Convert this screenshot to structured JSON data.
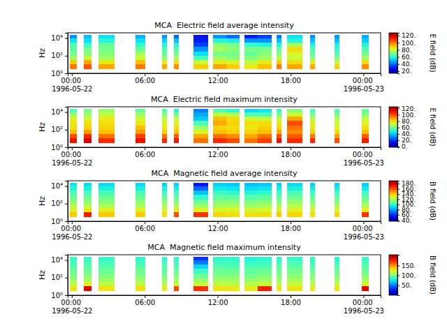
{
  "chart_data": [
    {
      "type": "heatmap",
      "title": "MCA  Electric field average intensity",
      "y_label": "Hz",
      "colorbar_label": "E field (dB)",
      "log": "y",
      "xlim": [
        "1996-05-21T23:40",
        "1996-05-23T01:25"
      ],
      "xticks": [
        {
          "value": "1996-05-22T00:00",
          "label": "00:00\n1996-05-22"
        },
        {
          "value": "1996-05-22T06:00",
          "label": "06:00"
        },
        {
          "value": "1996-05-22T12:00",
          "label": "12:00"
        },
        {
          "value": "1996-05-22T18:00",
          "label": "18:00"
        },
        {
          "value": "1996-05-23T00:00",
          "label": "00:00\n1996-05-23"
        }
      ],
      "ylim": [
        1,
        40000
      ],
      "yticks": [
        {
          "value": 1,
          "label": "10⁰"
        },
        {
          "value": 100,
          "label": "10²"
        },
        {
          "value": 10000,
          "label": "10⁴"
        }
      ],
      "x": [
        "1996-05-21T23:50",
        "1996-05-22T01:00",
        "1996-05-22T02:12",
        "1996-05-22T05:15",
        "1996-05-22T07:27",
        "1996-05-22T08:24",
        "1996-05-22T10:00",
        "1996-05-22T11:39",
        "1996-05-22T12:42",
        "1996-05-22T14:12",
        "1996-05-22T15:18",
        "1996-05-22T16:51",
        "1996-05-22T17:42",
        "1996-05-22T19:36",
        "1996-05-22T21:39",
        "1996-05-22T23:51"
      ],
      "x_end": [
        "1996-05-22T00:24",
        "1996-05-22T01:36",
        "1996-05-22T03:30",
        "1996-05-22T06:03",
        "1996-05-22T07:48",
        "1996-05-22T08:48",
        "1996-05-22T11:12",
        "1996-05-22T12:42",
        "1996-05-22T13:48",
        "1996-05-22T15:18",
        "1996-05-22T16:27",
        "1996-05-22T17:15",
        "1996-05-22T19:00",
        "1996-05-22T20:00",
        "1996-05-22T22:03",
        "1996-05-23T00:27"
      ],
      "y": [
        3,
        10,
        30,
        100,
        300,
        1000,
        3000,
        10000,
        25000
      ],
      "cells": [
        [
          100,
          90,
          75,
          70,
          68,
          65,
          55,
          45
        ],
        [
          105,
          95,
          80,
          72,
          70,
          62,
          55,
          50
        ],
        [
          95,
          85,
          75,
          72,
          70,
          68,
          60,
          55
        ],
        [
          100,
          92,
          80,
          75,
          68,
          62,
          55,
          48
        ],
        [
          95,
          85,
          72,
          68,
          65,
          60,
          52,
          45
        ],
        [
          98,
          88,
          75,
          70,
          66,
          60,
          50,
          40
        ],
        [
          90,
          80,
          65,
          55,
          45,
          35,
          30,
          28
        ],
        [
          95,
          85,
          75,
          70,
          75,
          72,
          60,
          45
        ],
        [
          90,
          82,
          72,
          70,
          72,
          70,
          58,
          40
        ],
        [
          85,
          78,
          72,
          68,
          70,
          62,
          45,
          30
        ],
        [
          92,
          85,
          75,
          72,
          70,
          60,
          45,
          35
        ],
        [
          100,
          90,
          78,
          72,
          68,
          60,
          50,
          42
        ],
        [
          95,
          88,
          80,
          82,
          88,
          75,
          60,
          55
        ],
        [
          95,
          85,
          72,
          68,
          65,
          58,
          50,
          45
        ],
        [
          90,
          80,
          70,
          66,
          62,
          58,
          50,
          45
        ],
        [
          98,
          88,
          75,
          70,
          66,
          60,
          52,
          48
        ]
      ],
      "colorbar_range": [
        14,
        128
      ],
      "colorbar_ticks": [
        {
          "value": 20,
          "label": "20."
        },
        {
          "value": 40,
          "label": "40."
        },
        {
          "value": 60,
          "label": "60."
        },
        {
          "value": 80,
          "label": "80."
        },
        {
          "value": 100,
          "label": "100."
        },
        {
          "value": 120,
          "label": "120."
        }
      ]
    },
    {
      "type": "heatmap",
      "title": "MCA  Electric field maximum intensity",
      "y_label": "Hz",
      "colorbar_label": "E field (dB)",
      "log": "y",
      "xlim": [
        "1996-05-21T23:40",
        "1996-05-23T01:25"
      ],
      "xticks": [
        {
          "value": "1996-05-22T00:00",
          "label": "00:00\n1996-05-22"
        },
        {
          "value": "1996-05-22T06:00",
          "label": "06:00"
        },
        {
          "value": "1996-05-22T12:00",
          "label": "12:00"
        },
        {
          "value": "1996-05-22T18:00",
          "label": "18:00"
        },
        {
          "value": "1996-05-23T00:00",
          "label": "00:00\n1996-05-23"
        }
      ],
      "ylim": [
        1,
        40000
      ],
      "yticks": [
        {
          "value": 1,
          "label": "10⁰"
        },
        {
          "value": 100,
          "label": "10²"
        },
        {
          "value": 10000,
          "label": "10⁴"
        }
      ],
      "x": [
        "1996-05-21T23:50",
        "1996-05-22T01:00",
        "1996-05-22T02:12",
        "1996-05-22T05:15",
        "1996-05-22T07:27",
        "1996-05-22T08:24",
        "1996-05-22T10:00",
        "1996-05-22T11:39",
        "1996-05-22T12:42",
        "1996-05-22T14:12",
        "1996-05-22T15:18",
        "1996-05-22T16:51",
        "1996-05-22T17:42",
        "1996-05-22T19:36",
        "1996-05-22T21:39",
        "1996-05-22T23:51"
      ],
      "x_end": [
        "1996-05-22T00:24",
        "1996-05-22T01:36",
        "1996-05-22T03:30",
        "1996-05-22T06:03",
        "1996-05-22T07:48",
        "1996-05-22T08:48",
        "1996-05-22T11:12",
        "1996-05-22T12:42",
        "1996-05-22T13:48",
        "1996-05-22T15:18",
        "1996-05-22T16:27",
        "1996-05-22T17:15",
        "1996-05-22T19:00",
        "1996-05-22T20:00",
        "1996-05-22T22:03",
        "1996-05-23T00:27"
      ],
      "y": [
        3,
        10,
        30,
        100,
        300,
        1000,
        3000,
        10000,
        25000
      ],
      "cells": [
        [
          110,
          100,
          85,
          80,
          78,
          75,
          65,
          55
        ],
        [
          115,
          105,
          90,
          82,
          80,
          72,
          65,
          60
        ],
        [
          105,
          95,
          85,
          82,
          80,
          78,
          70,
          65
        ],
        [
          110,
          102,
          90,
          85,
          78,
          72,
          65,
          58
        ],
        [
          105,
          95,
          82,
          78,
          75,
          70,
          62,
          55
        ],
        [
          108,
          98,
          85,
          80,
          76,
          70,
          60,
          50
        ],
        [
          95,
          88,
          75,
          65,
          55,
          40,
          35,
          30
        ],
        [
          105,
          95,
          85,
          82,
          88,
          85,
          70,
          55
        ],
        [
          100,
          92,
          82,
          80,
          82,
          80,
          68,
          50
        ],
        [
          95,
          88,
          82,
          78,
          80,
          72,
          55,
          42
        ],
        [
          102,
          95,
          85,
          82,
          80,
          70,
          55,
          45
        ],
        [
          110,
          100,
          88,
          82,
          78,
          70,
          60,
          52
        ],
        [
          105,
          98,
          92,
          95,
          100,
          88,
          72,
          62
        ],
        [
          105,
          95,
          82,
          78,
          75,
          68,
          60,
          55
        ],
        [
          100,
          90,
          80,
          76,
          72,
          68,
          60,
          55
        ],
        [
          108,
          98,
          85,
          80,
          76,
          70,
          62,
          58
        ]
      ],
      "colorbar_range": [
        -2,
        125
      ],
      "colorbar_ticks": [
        {
          "value": 0,
          "label": "0."
        },
        {
          "value": 20,
          "label": "20."
        },
        {
          "value": 40,
          "label": "40."
        },
        {
          "value": 60,
          "label": "60."
        },
        {
          "value": 80,
          "label": "80."
        },
        {
          "value": 100,
          "label": "100."
        },
        {
          "value": 120,
          "label": "120."
        }
      ]
    },
    {
      "type": "heatmap",
      "title": "MCA  Magnetic field average intensity",
      "y_label": "Hz",
      "colorbar_label": "B field (dB)",
      "log": "y",
      "xlim": [
        "1996-05-21T23:40",
        "1996-05-23T01:25"
      ],
      "xticks": [
        {
          "value": "1996-05-22T00:00",
          "label": "00:00\n1996-05-22"
        },
        {
          "value": "1996-05-22T06:00",
          "label": "06:00"
        },
        {
          "value": "1996-05-22T12:00",
          "label": "12:00"
        },
        {
          "value": "1996-05-22T18:00",
          "label": "18:00"
        },
        {
          "value": "1996-05-23T00:00",
          "label": "00:00\n1996-05-23"
        }
      ],
      "ylim": [
        1,
        40000
      ],
      "yticks": [
        {
          "value": 1,
          "label": "10⁰"
        },
        {
          "value": 100,
          "label": "10²"
        },
        {
          "value": 10000,
          "label": "10⁴"
        }
      ],
      "x": [
        "1996-05-21T23:50",
        "1996-05-22T01:00",
        "1996-05-22T02:12",
        "1996-05-22T05:15",
        "1996-05-22T07:27",
        "1996-05-22T08:24",
        "1996-05-22T10:00",
        "1996-05-22T11:39",
        "1996-05-22T12:42",
        "1996-05-22T14:12",
        "1996-05-22T15:18",
        "1996-05-22T16:51",
        "1996-05-22T17:42",
        "1996-05-22T19:36",
        "1996-05-22T21:39",
        "1996-05-22T23:51"
      ],
      "x_end": [
        "1996-05-22T00:24",
        "1996-05-22T01:36",
        "1996-05-22T03:30",
        "1996-05-22T06:03",
        "1996-05-22T07:48",
        "1996-05-22T08:48",
        "1996-05-22T11:12",
        "1996-05-22T12:42",
        "1996-05-22T13:48",
        "1996-05-22T15:18",
        "1996-05-22T16:27",
        "1996-05-22T17:15",
        "1996-05-22T19:00",
        "1996-05-22T20:00",
        "1996-05-22T22:03",
        "1996-05-23T00:27"
      ],
      "y": [
        3,
        10,
        30,
        100,
        300,
        1000,
        3000,
        10000,
        25000
      ],
      "cells": [
        [
          140,
          130,
          122,
          115,
          110,
          105,
          98,
          92
        ],
        [
          170,
          135,
          122,
          115,
          110,
          104,
          96,
          90
        ],
        [
          140,
          130,
          120,
          114,
          110,
          104,
          96,
          90
        ],
        [
          140,
          130,
          120,
          115,
          110,
          104,
          96,
          90
        ],
        [
          135,
          128,
          120,
          114,
          108,
          102,
          95,
          88
        ],
        [
          160,
          132,
          120,
          114,
          108,
          102,
          95,
          88
        ],
        [
          165,
          130,
          118,
          110,
          100,
          85,
          70,
          55
        ],
        [
          138,
          128,
          120,
          114,
          108,
          102,
          94,
          88
        ],
        [
          136,
          128,
          120,
          114,
          108,
          100,
          92,
          86
        ],
        [
          135,
          126,
          118,
          112,
          106,
          98,
          90,
          85
        ],
        [
          136,
          128,
          120,
          114,
          108,
          100,
          92,
          86
        ],
        [
          140,
          130,
          120,
          114,
          108,
          102,
          94,
          88
        ],
        [
          138,
          130,
          122,
          116,
          110,
          104,
          96,
          90
        ],
        [
          136,
          128,
          120,
          114,
          108,
          102,
          94,
          88
        ],
        [
          138,
          128,
          120,
          114,
          108,
          102,
          94,
          88
        ],
        [
          165,
          132,
          120,
          114,
          108,
          102,
          94,
          88
        ]
      ],
      "colorbar_range": [
        35,
        191
      ],
      "colorbar_ticks": [
        {
          "value": 40,
          "label": "40."
        },
        {
          "value": 60,
          "label": "60."
        },
        {
          "value": 80,
          "label": "80."
        },
        {
          "value": 100,
          "label": "100."
        },
        {
          "value": 120,
          "label": "120."
        },
        {
          "value": 140,
          "label": "140."
        },
        {
          "value": 160,
          "label": "160."
        },
        {
          "value": 180,
          "label": "180."
        }
      ]
    },
    {
      "type": "heatmap",
      "title": "MCA  Magnetic field maximum intensity",
      "y_label": "Hz",
      "colorbar_label": "B field (dB)",
      "log": "y",
      "xlim": [
        "1996-05-21T23:40",
        "1996-05-23T01:25"
      ],
      "xticks": [
        {
          "value": "1996-05-22T00:00",
          "label": "00:00\n1996-05-22"
        },
        {
          "value": "1996-05-22T06:00",
          "label": "06:00"
        },
        {
          "value": "1996-05-22T12:00",
          "label": "12:00"
        },
        {
          "value": "1996-05-22T18:00",
          "label": "18:00"
        },
        {
          "value": "1996-05-23T00:00",
          "label": "00:00\n1996-05-23"
        }
      ],
      "ylim": [
        1,
        40000
      ],
      "yticks": [
        {
          "value": 1,
          "label": "10⁰"
        },
        {
          "value": 100,
          "label": "10²"
        },
        {
          "value": 10000,
          "label": "10⁴"
        }
      ],
      "x": [
        "1996-05-21T23:50",
        "1996-05-22T01:00",
        "1996-05-22T02:12",
        "1996-05-22T05:15",
        "1996-05-22T07:27",
        "1996-05-22T08:24",
        "1996-05-22T10:00",
        "1996-05-22T11:39",
        "1996-05-22T12:42",
        "1996-05-22T14:12",
        "1996-05-22T15:18",
        "1996-05-22T16:51",
        "1996-05-22T17:42",
        "1996-05-22T19:36",
        "1996-05-22T21:39",
        "1996-05-22T23:51"
      ],
      "x_end": [
        "1996-05-22T00:24",
        "1996-05-22T01:36",
        "1996-05-22T03:30",
        "1996-05-22T06:03",
        "1996-05-22T07:48",
        "1996-05-22T08:48",
        "1996-05-22T11:12",
        "1996-05-22T12:42",
        "1996-05-22T13:48",
        "1996-05-22T15:18",
        "1996-05-22T16:27",
        "1996-05-22T17:15",
        "1996-05-22T19:00",
        "1996-05-22T20:00",
        "1996-05-22T22:03",
        "1996-05-23T00:27"
      ],
      "y": [
        3,
        10,
        30,
        100,
        300,
        1000,
        3000,
        10000,
        25000
      ],
      "cells": [
        [
          130,
          115,
          108,
          102,
          98,
          94,
          90,
          86
        ],
        [
          185,
          125,
          110,
          104,
          98,
          94,
          90,
          86
        ],
        [
          130,
          115,
          108,
          102,
          98,
          94,
          90,
          86
        ],
        [
          132,
          116,
          108,
          102,
          98,
          94,
          88,
          84
        ],
        [
          128,
          114,
          106,
          100,
          96,
          92,
          88,
          84
        ],
        [
          165,
          118,
          108,
          102,
          98,
          92,
          88,
          84
        ],
        [
          170,
          118,
          106,
          98,
          88,
          70,
          50,
          35
        ],
        [
          130,
          116,
          108,
          102,
          98,
          94,
          88,
          84
        ],
        [
          128,
          115,
          108,
          102,
          98,
          92,
          88,
          84
        ],
        [
          126,
          114,
          106,
          100,
          96,
          92,
          86,
          82
        ],
        [
          175,
          118,
          108,
          102,
          98,
          92,
          88,
          84
        ],
        [
          130,
          115,
          108,
          102,
          98,
          94,
          88,
          84
        ],
        [
          130,
          118,
          110,
          104,
          100,
          96,
          90,
          86
        ],
        [
          128,
          115,
          108,
          102,
          98,
          94,
          88,
          84
        ],
        [
          130,
          115,
          108,
          102,
          98,
          94,
          88,
          84
        ],
        [
          185,
          122,
          110,
          104,
          98,
          94,
          90,
          86
        ]
      ],
      "colorbar_range": [
        0,
        204
      ],
      "colorbar_ticks": [
        {
          "value": 50,
          "label": "50."
        },
        {
          "value": 100,
          "label": "100."
        },
        {
          "value": 150,
          "label": "150."
        }
      ]
    }
  ]
}
